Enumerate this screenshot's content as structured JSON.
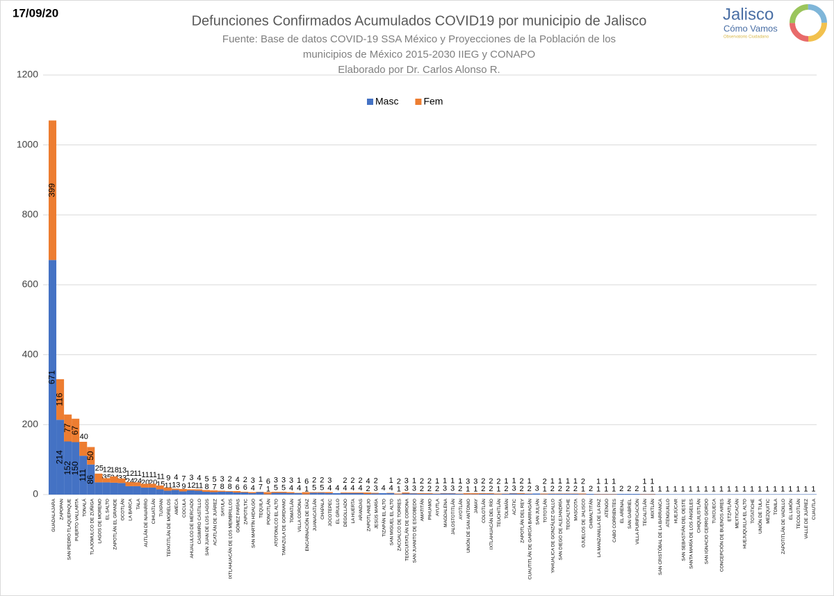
{
  "date": "17/09/20",
  "logo": {
    "name": "Jalisco",
    "tagline": "Cómo Vamos",
    "sub": "Observatorio Ciudadano"
  },
  "chart_data": {
    "type": "stacked_bar",
    "title": "Defunciones Confirmados Acumulados COVID19 por municipio de Jalisco",
    "subtitle": [
      "Fuente: Base de datos COVID-19 SSA México y Proyecciones de la Población de los",
      "municipios de México 2015-2030 IIEG y CONAPO",
      "Elaborado por Dr. Carlos Alonso R."
    ],
    "legend": "top",
    "grid": true,
    "ylim": [
      0,
      1200
    ],
    "yticks": [
      0,
      200,
      400,
      600,
      800,
      1000,
      1200
    ],
    "categories": [
      "GUADALAJARA",
      "ZAPOPAN",
      "SAN PEDRO TLAQUEPAQUE",
      "PUERTO VALLARTA",
      "TONALÁ",
      "TLAJOMULCO DE ZÚÑIGA",
      "LAGOS DE MORENO",
      "EL SALTO",
      "ZAPOTLÁN EL GRANDE",
      "OCOTLÁN",
      "LA BARCA",
      "TALA",
      "AUTLÁN DE NAVARRO",
      "CIHUATLÁN",
      "TUXPAN",
      "TEPATITLÁN DE MORELOS",
      "AMECA",
      "COCULA",
      "AHUALULCO DE MERCADO",
      "CASIMIRO CASTILLO",
      "SAN JUAN DE LOS LAGOS",
      "ACATLÁN DE JUÁREZ",
      "SAYULA",
      "IXTLAHUACÁN DE LOS MEMBRILLOS",
      "GÓMEZ FARÍAS",
      "ZAPOTILTIC",
      "SAN MARTÍN HIDALGO",
      "TEQUILA",
      "PONCITLÁN",
      "ATOTONILCO EL ALTO",
      "TAMAZULA DE GORDIANO",
      "TOMATLÁN",
      "VILLA CORONA",
      "ENCARNACIÓN DE DÍAZ",
      "JUANACATLÁN",
      "CHAPALA",
      "JOCOTEPEC",
      "EL GRULLO",
      "DEGOLLADO",
      "LA HUERTA",
      "ARANDAS",
      "ZAPOTLANEJO",
      "JESÚS MARÍA",
      "TIZAPÁN EL ALTO",
      "SAN MIGUEL EL ALTO",
      "ZACOALCO DE TORRES",
      "TEOCUITATLÁN DE CORONA",
      "SAN JUANITO DE ESCOBEDO",
      "AMATITÁN",
      "PIHUAMO",
      "AYUTLA",
      "MAGDALENA",
      "JALOSTOTITLÁN",
      "AYOTLÁN",
      "UNIÓN DE SAN ANTONIO",
      "JAMAY",
      "COLOTLÁN",
      "IXTLAHUACÁN DEL RÍO",
      "TEUCHITLÁN",
      "TOLIMÁN",
      "ACATIC",
      "ZAPOTLÁN DEL REY",
      "CUAUTITLÁN DE GARCÍA BARRAGÁN",
      "SAN JULIÁN",
      "TOTOTLÁN",
      "YAHUALICA DE GONZÁLEZ GALLO",
      "SAN DIEGO DE ALEJANDRÍA",
      "TEOCALTICHE",
      "MASCOTA",
      "OJUELOS DE JALISCO",
      "CHIMALTITÁN",
      "LA MANZANILLA DE LA PAZ",
      "ATENGO",
      "CABO CORRIENTES",
      "EL ARENAL",
      "SAN GABRIEL",
      "VILLA PURIFICACIÓN",
      "TECALITLÁN",
      "MIXTLÁN",
      "SAN CRISTÓBAL DE LA BARRANCA",
      "ATENGUILLO",
      "HUEJÚCAR",
      "SAN SEBASTIÁN DEL OESTE",
      "SANTA MARÍA DE LOS ÁNGELES",
      "CHIQUILISTLÁN",
      "SAN IGNACIO CERRO GORDO",
      "TUXCUECA",
      "CONCEPCIÓN DE BUENOS AIRES",
      "ETZATLÁN",
      "MEXTICACÁN",
      "HUEJUQUILLA EL ALTO",
      "TOTATICHE",
      "UNIÓN DE TULA",
      "MEZQUITIC",
      "TONILA",
      "ZAPOTITLÁN DE VADILLO",
      "EL LIMÓN",
      "TECOLOTLÁN",
      "VALLE DE JUÁREZ",
      "CUAUTLA"
    ],
    "series": [
      {
        "name": "Masc",
        "color": "#4472c4",
        "values": [
          671,
          214,
          152,
          150,
          111,
          86,
          35,
          35,
          34,
          33,
          24,
          24,
          20,
          20,
          15,
          11,
          13,
          9,
          12,
          11,
          8,
          7,
          8,
          8,
          6,
          6,
          4,
          7,
          1,
          5,
          5,
          4,
          4,
          1,
          5,
          5,
          4,
          4,
          4,
          4,
          4,
          2,
          3,
          4,
          4,
          1,
          3,
          3,
          2,
          2,
          2,
          3,
          3,
          2,
          1,
          1,
          2,
          2,
          1,
          2,
          3,
          2,
          2,
          3,
          1,
          2,
          2,
          2,
          2,
          1,
          2,
          1,
          1,
          1,
          2,
          2,
          2,
          1,
          1,
          1,
          1,
          1,
          1,
          1,
          1,
          1,
          1,
          1,
          1,
          1,
          1,
          1,
          1,
          1,
          1,
          1,
          1,
          1,
          1,
          1
        ]
      },
      {
        "name": "Fem",
        "color": "#ed7d31",
        "values": [
          399,
          116,
          77,
          67,
          40,
          50,
          25,
          12,
          18,
          13,
          12,
          11,
          11,
          11,
          11,
          9,
          4,
          7,
          3,
          4,
          5,
          5,
          3,
          2,
          4,
          2,
          3,
          1,
          6,
          3,
          3,
          3,
          1,
          6,
          2,
          2,
          3,
          null,
          2,
          2,
          2,
          4,
          2,
          null,
          1,
          2,
          3,
          1,
          2,
          2,
          1,
          1,
          1,
          1,
          3,
          3,
          2,
          2,
          2,
          1,
          1,
          2,
          1,
          null,
          2,
          1,
          1,
          1,
          1,
          2,
          null,
          1,
          1,
          1,
          null,
          null,
          null,
          1,
          1,
          null,
          null,
          null,
          null,
          null,
          null,
          null,
          null,
          null,
          null,
          null,
          null,
          null,
          null,
          null,
          null,
          null,
          null,
          null,
          null,
          null
        ]
      }
    ]
  }
}
